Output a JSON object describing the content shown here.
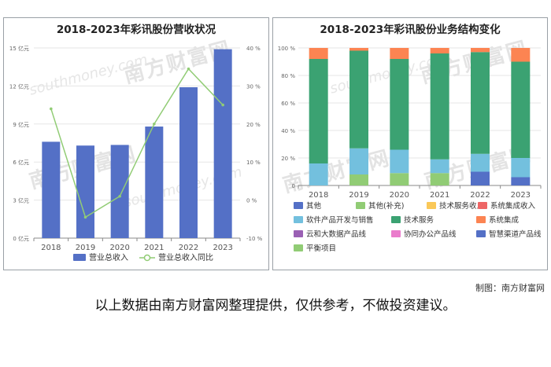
{
  "credit": "制图：南方财富网",
  "disclaimer": "以上数据由南方财富网整理提供，仅供参考，不做投资建议。",
  "watermark": {
    "brand": "南方财富网",
    "domain": "southmoney.com"
  },
  "chart_data": [
    {
      "type": "bar",
      "title": "2018-2023年彩讯股份营收状况",
      "categories": [
        "2018",
        "2019",
        "2020",
        "2021",
        "2022",
        "2023"
      ],
      "left_axis": {
        "ticks": [
          "0 亿元",
          "3 亿元",
          "6 亿元",
          "9 亿元",
          "12 亿元",
          "15 亿元"
        ],
        "ylim": [
          0,
          15
        ]
      },
      "right_axis": {
        "ticks": [
          "-10 %",
          "0 %",
          "10 %",
          "20 %",
          "30 %",
          "40 %"
        ],
        "ylim": [
          -10,
          40
        ]
      },
      "series": [
        {
          "name": "营业总收入",
          "kind": "bar",
          "color": "#5470c6",
          "values": [
            7.6,
            7.3,
            7.35,
            8.8,
            11.9,
            14.9
          ]
        },
        {
          "name": "营业总收入同比",
          "kind": "line",
          "color": "#91cc75",
          "values": [
            24,
            -4.5,
            1,
            20,
            34.5,
            25
          ]
        }
      ],
      "legend": "bottom",
      "grid": true
    },
    {
      "type": "bar",
      "stacked": true,
      "title": "2018-2023年彩讯股份业务结构变化",
      "categories": [
        "2018",
        "2019",
        "2020",
        "2021",
        "2022",
        "2023"
      ],
      "y_axis": {
        "ticks": [
          "0",
          "20 %",
          "40 %",
          "60 %",
          "80 %",
          "100 %"
        ],
        "ylim": [
          0,
          100
        ]
      },
      "series": [
        {
          "name": "其他",
          "color": "#5470c6",
          "values": [
            0,
            0,
            0,
            0,
            10,
            6
          ]
        },
        {
          "name": "其他(补充)",
          "color": "#91cc75",
          "values": [
            0,
            8,
            9,
            9,
            0,
            0
          ]
        },
        {
          "name": "技术服务收入",
          "color": "#fac858",
          "values": [
            0,
            0,
            0,
            0,
            0,
            0
          ]
        },
        {
          "name": "系统集成收入",
          "color": "#ee6666",
          "values": [
            0,
            0,
            0,
            0,
            0,
            0
          ]
        },
        {
          "name": "软件产品开发与销售",
          "color": "#73c0de",
          "values": [
            16,
            19,
            17,
            10,
            13,
            14
          ]
        },
        {
          "name": "技术服务",
          "color": "#3ba272",
          "values": [
            76,
            71,
            66,
            77,
            74,
            70
          ]
        },
        {
          "name": "系统集成",
          "color": "#fc8452",
          "values": [
            8,
            2,
            8,
            4,
            3,
            10
          ]
        },
        {
          "name": "云和大数据产品线",
          "color": "#9a60b4",
          "values": [
            0,
            0,
            0,
            0,
            0,
            0
          ]
        },
        {
          "name": "协同办公产品线",
          "color": "#ea7ccc",
          "values": [
            0,
            0,
            0,
            0,
            0,
            0
          ]
        },
        {
          "name": "智慧渠道产品线",
          "color": "#5470c6",
          "values": [
            0,
            0,
            0,
            0,
            0,
            0
          ]
        },
        {
          "name": "平衡项目",
          "color": "#91cc75",
          "values": [
            0,
            0,
            0,
            0,
            0,
            0
          ]
        }
      ],
      "legend": "bottom",
      "grid": true
    }
  ]
}
